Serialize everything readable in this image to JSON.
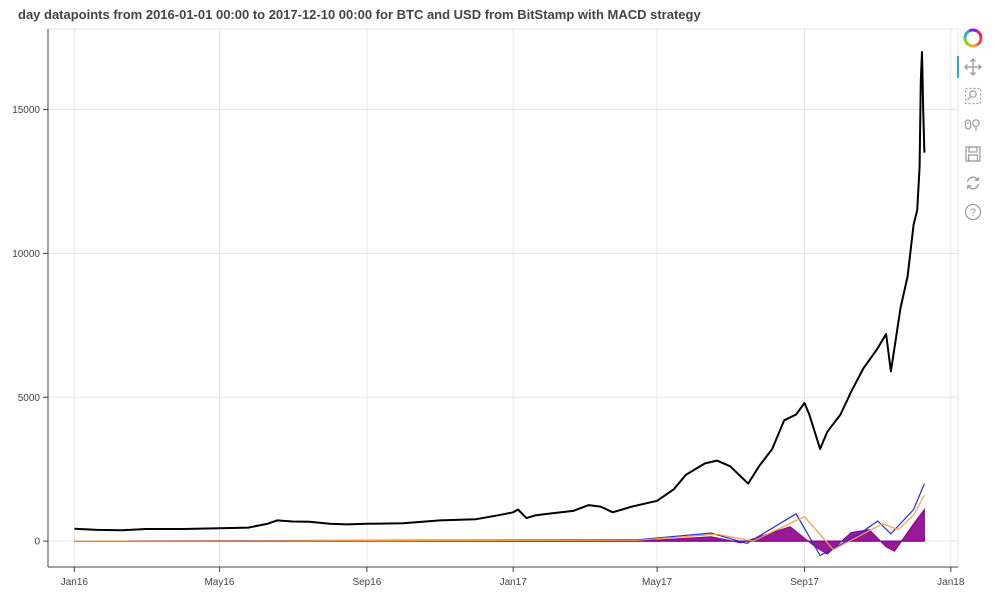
{
  "title": "day datapoints from 2016-01-01 00:00 to 2017-12-10 00:00 for BTC and USD from BitStamp with MACD strategy",
  "toolbar": {
    "tools": [
      "logo-icon",
      "pan-icon",
      "box-zoom-icon",
      "wheel-zoom-icon",
      "save-icon",
      "reset-icon",
      "help-icon"
    ],
    "active": "pan-icon"
  },
  "chart_data": {
    "type": "line",
    "title": "day datapoints from 2016-01-01 00:00 to 2017-12-10 00:00 for BTC and USD from BitStamp with MACD strategy",
    "x_ticks": [
      "Jan16",
      "May16",
      "Sep16",
      "Jan17",
      "May17",
      "Sep17",
      "Jan18"
    ],
    "y_ticks": [
      0,
      5000,
      10000,
      15000
    ],
    "xlim": [
      "2015-12-10",
      "2018-01-07"
    ],
    "ylim": [
      -900,
      17800
    ],
    "grid": true,
    "legend": "none",
    "colors": {
      "price": "#000000",
      "macd": "#1f2fe0",
      "signal": "#f5a040",
      "histogram": "#8b008b"
    },
    "series": [
      {
        "role": "price",
        "x": [
          "2016-01-01",
          "2016-01-20",
          "2016-02-10",
          "2016-03-01",
          "2016-04-01",
          "2016-05-01",
          "2016-05-25",
          "2016-06-10",
          "2016-06-18",
          "2016-07-01",
          "2016-07-15",
          "2016-08-01",
          "2016-08-15",
          "2016-09-01",
          "2016-10-01",
          "2016-11-01",
          "2016-12-01",
          "2016-12-20",
          "2017-01-01",
          "2017-01-05",
          "2017-01-12",
          "2017-01-20",
          "2017-02-01",
          "2017-02-20",
          "2017-03-05",
          "2017-03-15",
          "2017-03-25",
          "2017-04-10",
          "2017-05-01",
          "2017-05-15",
          "2017-05-25",
          "2017-06-10",
          "2017-06-20",
          "2017-07-01",
          "2017-07-16",
          "2017-07-25",
          "2017-08-05",
          "2017-08-15",
          "2017-08-25",
          "2017-09-01",
          "2017-09-05",
          "2017-09-14",
          "2017-09-20",
          "2017-10-01",
          "2017-10-10",
          "2017-10-20",
          "2017-11-01",
          "2017-11-08",
          "2017-11-12",
          "2017-11-20",
          "2017-11-26",
          "2017-12-01",
          "2017-12-04",
          "2017-12-06",
          "2017-12-07",
          "2017-12-08",
          "2017-12-09",
          "2017-12-10"
        ],
        "y": [
          430,
          390,
          380,
          420,
          420,
          450,
          470,
          600,
          720,
          680,
          670,
          600,
          580,
          600,
          620,
          720,
          760,
          900,
          1000,
          1100,
          800,
          900,
          960,
          1050,
          1250,
          1200,
          1000,
          1200,
          1400,
          1800,
          2300,
          2700,
          2800,
          2600,
          2000,
          2600,
          3200,
          4200,
          4400,
          4800,
          4400,
          3200,
          3800,
          4400,
          5200,
          6000,
          6700,
          7200,
          5900,
          8100,
          9200,
          11000,
          11500,
          13000,
          16000,
          17000,
          15000,
          13500
        ]
      },
      {
        "role": "macd",
        "x": [
          "2016-01-01",
          "2017-04-15",
          "2017-06-15",
          "2017-07-15",
          "2017-08-25",
          "2017-09-14",
          "2017-10-15",
          "2017-11-01",
          "2017-11-12",
          "2017-12-01",
          "2017-12-10"
        ],
        "y": [
          0,
          50,
          280,
          -80,
          950,
          -500,
          200,
          700,
          250,
          1100,
          2000
        ]
      },
      {
        "role": "signal",
        "x": [
          "2016-01-01",
          "2017-04-15",
          "2017-06-20",
          "2017-07-20",
          "2017-09-01",
          "2017-09-25",
          "2017-10-20",
          "2017-11-05",
          "2017-11-18",
          "2017-12-01",
          "2017-12-10"
        ],
        "y": [
          0,
          30,
          240,
          0,
          850,
          -300,
          250,
          600,
          400,
          900,
          1600
        ]
      },
      {
        "role": "histogram",
        "x": [
          "2016-01-01",
          "2017-05-01",
          "2017-06-15",
          "2017-07-10",
          "2017-08-20",
          "2017-09-10",
          "2017-09-20",
          "2017-10-10",
          "2017-10-25",
          "2017-11-08",
          "2017-11-15",
          "2017-12-01",
          "2017-12-10"
        ],
        "y": [
          0,
          40,
          150,
          -60,
          500,
          -200,
          -450,
          300,
          400,
          -200,
          -350,
          600,
          1100
        ]
      }
    ]
  }
}
